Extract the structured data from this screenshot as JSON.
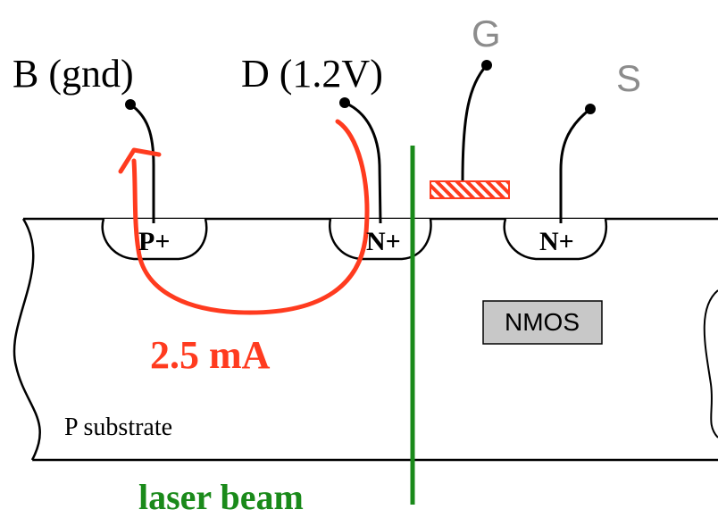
{
  "labels": {
    "bulk_terminal": "B (gnd)",
    "drain_terminal": "D (1.2V)",
    "gate_terminal": "G",
    "source_terminal": "S",
    "p_plus_region": "P+",
    "drain_n_plus_region": "N+",
    "source_n_plus_region": "N+",
    "device_box": "NMOS",
    "current_value": "2.5 mA",
    "substrate": "P substrate",
    "beam": "laser beam"
  },
  "colors": {
    "current_path": "#ff3b1f",
    "laser_beam": "#1a8a1a",
    "gate_fill": "#ff3b1f",
    "terminal_label_gray": "#8c8c8c",
    "nmos_box_fill": "#c8c8c8",
    "outline": "#000000"
  }
}
